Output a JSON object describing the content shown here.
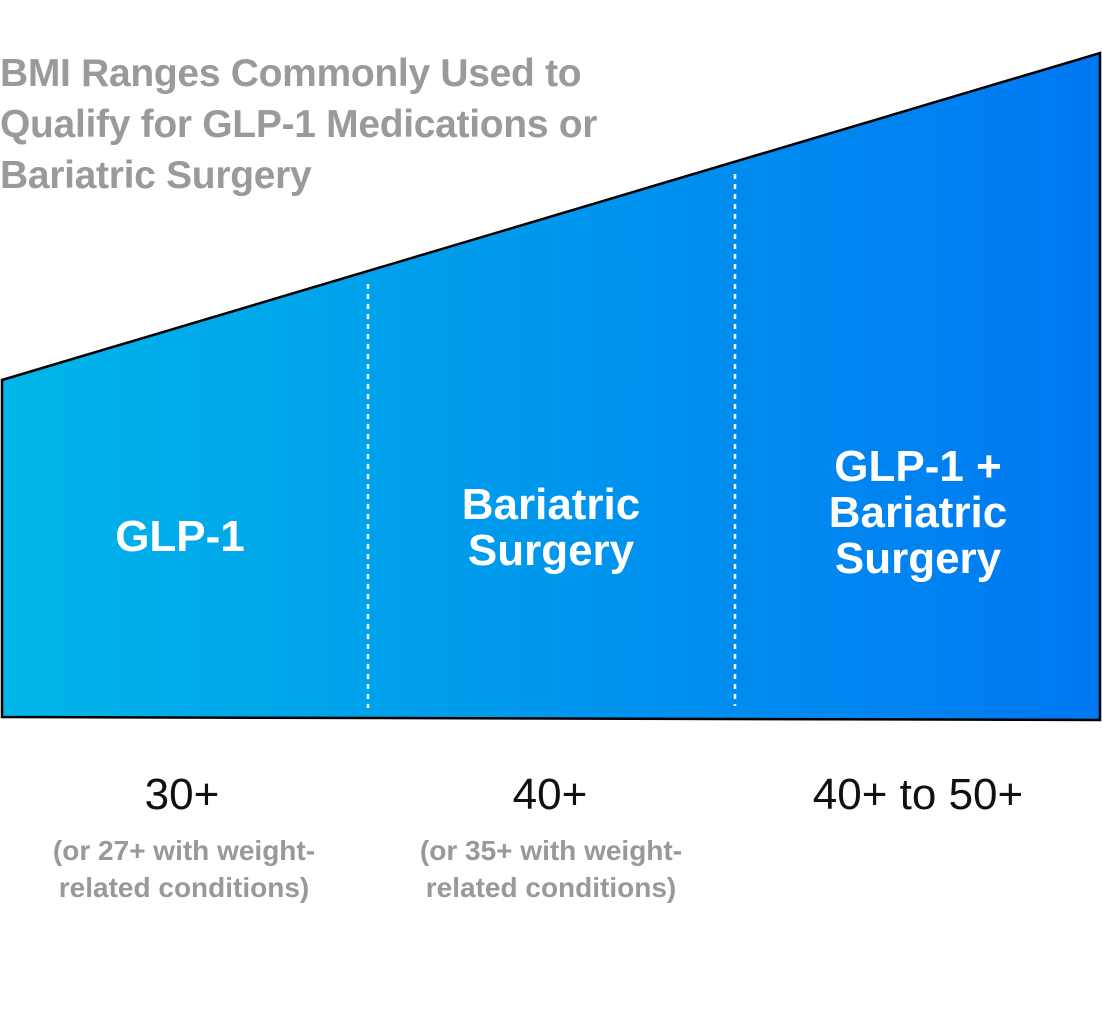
{
  "title": "BMI Ranges Commonly Used to Qualify for GLP-1 Medications or Bariatric Surgery",
  "colors": {
    "gradient_start": "#00b6e8",
    "gradient_end": "#0078f2",
    "title": "#9a9a9a",
    "divider": "#ffffff"
  },
  "columns": [
    {
      "label": "GLP-1",
      "bmi": "30+",
      "note": "(or 27+ with weight-related conditions)"
    },
    {
      "label": "Bariatric Surgery",
      "bmi": "40+",
      "note": "(or 35+ with weight-related conditions)"
    },
    {
      "label": "GLP-1 + Bariatric Surgery",
      "bmi": "40+ to 50+"
    }
  ]
}
